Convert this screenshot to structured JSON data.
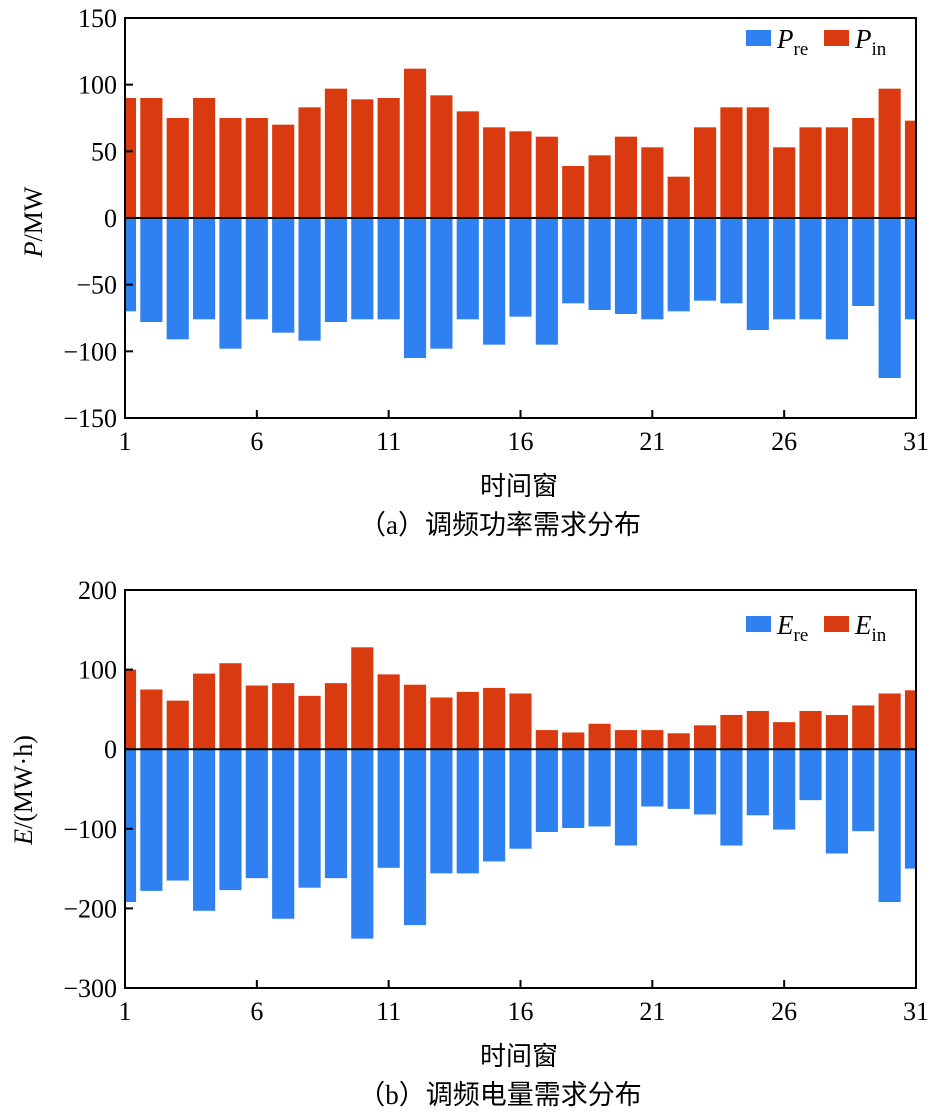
{
  "colors": {
    "negative": "#2f80f0",
    "positive": "#d93a0f",
    "axis": "#000000"
  },
  "chart_data": [
    {
      "type": "bar",
      "caption": "（a）调频功率需求分布",
      "xlabel": "时间窗",
      "ylabel": {
        "var": "P",
        "unit": "/MW"
      },
      "ylim": [
        -150,
        150
      ],
      "yticks": [
        150,
        100,
        50,
        0,
        -50,
        -100,
        -150
      ],
      "yticklabels": [
        "150",
        "100",
        "50",
        "0",
        "−50",
        "−100",
        "−150"
      ],
      "xlim": [
        1,
        31
      ],
      "xticks": [
        1,
        6,
        11,
        16,
        21,
        26,
        31
      ],
      "xticklabels": [
        "1",
        "6",
        "11",
        "16",
        "21",
        "26",
        "31"
      ],
      "legend": [
        {
          "var": "P",
          "sub": "re",
          "series": "negative"
        },
        {
          "var": "P",
          "sub": "in",
          "series": "positive"
        }
      ],
      "series": [
        {
          "name": "P_re",
          "color_key": "negative",
          "values": [
            -70,
            -78,
            -91,
            -76,
            -98,
            -76,
            -86,
            -92,
            -78,
            -76,
            -76,
            -105,
            -98,
            -76,
            -95,
            -74,
            -95,
            -64,
            -69,
            -72,
            -76,
            -70,
            -62,
            -64,
            -84,
            -76,
            -76,
            -91,
            -66,
            -120,
            -76
          ]
        },
        {
          "name": "P_in",
          "color_key": "positive",
          "values": [
            90,
            90,
            75,
            90,
            75,
            75,
            70,
            83,
            97,
            89,
            90,
            112,
            92,
            80,
            68,
            65,
            61,
            39,
            47,
            61,
            53,
            31,
            68,
            83,
            83,
            53,
            68,
            68,
            75,
            97,
            73
          ]
        }
      ]
    },
    {
      "type": "bar",
      "caption": "（b）调频电量需求分布",
      "xlabel": "时间窗",
      "ylabel": {
        "var": "E",
        "unit": "/(MW·h)"
      },
      "ylim": [
        -300,
        200
      ],
      "yticks": [
        200,
        100,
        0,
        -100,
        -200,
        -300
      ],
      "yticklabels": [
        "200",
        "100",
        "0",
        "−100",
        "−200",
        "−300"
      ],
      "xlim": [
        1,
        31
      ],
      "xticks": [
        1,
        6,
        11,
        16,
        21,
        26,
        31
      ],
      "xticklabels": [
        "1",
        "6",
        "11",
        "16",
        "21",
        "26",
        "31"
      ],
      "legend": [
        {
          "var": "E",
          "sub": "re",
          "series": "negative"
        },
        {
          "var": "E",
          "sub": "in",
          "series": "positive"
        }
      ],
      "series": [
        {
          "name": "E_re",
          "color_key": "negative",
          "values": [
            -192,
            -178,
            -165,
            -203,
            -177,
            -162,
            -213,
            -174,
            -162,
            -238,
            -149,
            -221,
            -156,
            -156,
            -141,
            -125,
            -104,
            -99,
            -97,
            -121,
            -72,
            -75,
            -82,
            -121,
            -83,
            -101,
            -64,
            -131,
            -103,
            -192,
            -150
          ]
        },
        {
          "name": "E_in",
          "color_key": "positive",
          "values": [
            100,
            75,
            61,
            95,
            108,
            80,
            83,
            67,
            83,
            128,
            94,
            81,
            65,
            72,
            77,
            70,
            24,
            21,
            32,
            24,
            24,
            20,
            30,
            43,
            48,
            34,
            48,
            43,
            55,
            70,
            74
          ]
        }
      ]
    }
  ]
}
